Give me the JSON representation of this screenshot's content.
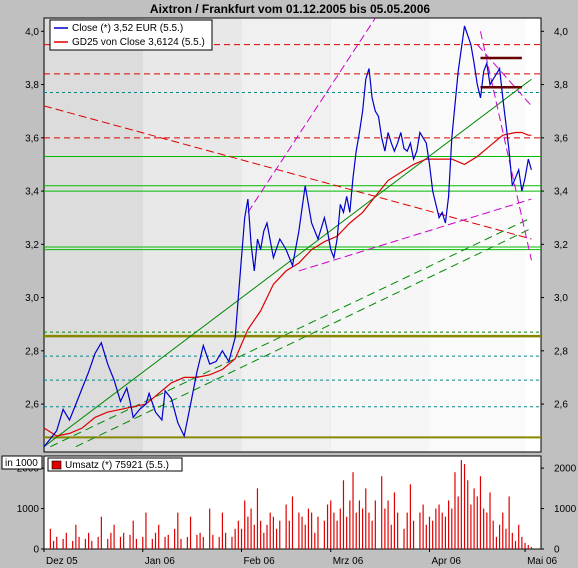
{
  "chart_data": [
    {
      "type": "line",
      "title": "Aixtron / Frankfurt vom 01.12.2005 bis 05.05.2006",
      "ylim": [
        2.42,
        4.05
      ],
      "y_ticks": [
        "4,0",
        "3,8",
        "3,6",
        "3,4",
        "3,2",
        "3,0",
        "2,8",
        "2,6"
      ],
      "y_tick_values": [
        4.0,
        3.8,
        3.6,
        3.4,
        3.2,
        3.0,
        2.8,
        2.6
      ],
      "x_ticks": [
        "Dez 05",
        "Jan 06",
        "Feb 06",
        "Mrz 06",
        "Apr 06",
        "Mai 06"
      ],
      "x_tick_days": [
        0,
        31,
        62,
        90,
        121,
        151
      ],
      "x_range_days": [
        0,
        156
      ],
      "legend": [
        {
          "label": "Close (*) 3,52 EUR (5.5.)",
          "color": "#0000cc"
        },
        {
          "label": "GD25 von Close 3,6124 (5.5.)",
          "color": "#dd0000"
        }
      ],
      "series": [
        {
          "name": "Close (*) 3,52 EUR (5.5.)",
          "color": "#0000cc",
          "x": [
            0,
            2,
            4,
            6,
            8,
            10,
            12,
            14,
            16,
            18,
            20,
            22,
            24,
            26,
            27,
            28,
            30,
            32,
            33,
            35,
            37,
            38,
            40,
            42,
            44,
            46,
            48,
            50,
            52,
            54,
            56,
            58,
            60,
            61,
            62,
            63,
            64,
            65,
            66,
            67,
            68,
            69,
            70,
            72,
            74,
            76,
            78,
            80,
            82,
            84,
            86,
            88,
            89,
            90,
            91,
            92,
            93,
            94,
            95,
            96,
            97,
            98,
            99,
            100,
            101,
            102,
            103,
            104,
            105,
            106,
            107,
            108,
            109,
            110,
            111,
            112,
            113,
            114,
            115,
            116,
            117,
            118,
            119,
            120,
            121,
            122,
            123,
            124,
            125,
            126,
            127,
            128,
            130,
            132,
            134,
            135,
            136,
            137,
            138,
            139,
            140,
            141,
            142,
            143,
            144,
            145,
            146,
            147,
            148,
            149,
            150,
            151,
            152,
            153
          ],
          "y": [
            2.44,
            2.47,
            2.5,
            2.58,
            2.54,
            2.6,
            2.66,
            2.72,
            2.79,
            2.83,
            2.75,
            2.69,
            2.61,
            2.66,
            2.61,
            2.55,
            2.58,
            2.6,
            2.64,
            2.57,
            2.54,
            2.65,
            2.62,
            2.53,
            2.48,
            2.6,
            2.72,
            2.82,
            2.75,
            2.76,
            2.8,
            2.76,
            2.85,
            3.0,
            3.15,
            3.3,
            3.37,
            3.2,
            3.1,
            3.22,
            3.18,
            3.25,
            3.28,
            3.15,
            3.22,
            3.18,
            3.12,
            3.25,
            3.42,
            3.28,
            3.22,
            3.3,
            3.25,
            3.18,
            3.15,
            3.22,
            3.35,
            3.32,
            3.38,
            3.32,
            3.45,
            3.55,
            3.62,
            3.7,
            3.82,
            3.86,
            3.75,
            3.7,
            3.68,
            3.6,
            3.55,
            3.62,
            3.58,
            3.55,
            3.58,
            3.62,
            3.56,
            3.55,
            3.58,
            3.52,
            3.55,
            3.62,
            3.6,
            3.58,
            3.5,
            3.4,
            3.35,
            3.3,
            3.32,
            3.28,
            3.38,
            3.6,
            3.85,
            4.02,
            3.95,
            3.88,
            3.8,
            3.75,
            3.85,
            3.88,
            3.8,
            3.82,
            3.84,
            3.86,
            3.75,
            3.65,
            3.55,
            3.42,
            3.45,
            3.48,
            3.4,
            3.45,
            3.52,
            3.48
          ]
        },
        {
          "name": "GD25 von Close 3,6124 (5.5.)",
          "color": "#dd0000",
          "x": [
            0,
            4,
            8,
            12,
            16,
            20,
            24,
            28,
            32,
            36,
            40,
            44,
            48,
            52,
            56,
            60,
            64,
            68,
            72,
            76,
            80,
            84,
            88,
            92,
            96,
            100,
            104,
            108,
            112,
            116,
            120,
            124,
            128,
            132,
            136,
            140,
            144,
            148,
            150,
            152,
            153
          ],
          "y": [
            2.51,
            2.48,
            2.49,
            2.51,
            2.55,
            2.57,
            2.58,
            2.59,
            2.6,
            2.64,
            2.68,
            2.7,
            2.7,
            2.71,
            2.73,
            2.77,
            2.88,
            2.95,
            3.05,
            3.1,
            3.13,
            3.18,
            3.21,
            3.23,
            3.28,
            3.32,
            3.38,
            3.44,
            3.47,
            3.5,
            3.52,
            3.52,
            3.52,
            3.5,
            3.53,
            3.57,
            3.61,
            3.62,
            3.62,
            3.61,
            3.61
          ]
        }
      ]
    },
    {
      "type": "bar",
      "legend": [
        {
          "label": "Umsatz (*) 75921 (5.5.)",
          "color": "#dd0000"
        }
      ],
      "unit_label": "in 1000",
      "ylim": [
        0,
        2300
      ],
      "y_ticks": [
        "2000",
        "1000",
        "0"
      ],
      "y_tick_values": [
        2000,
        1000,
        0
      ],
      "series": [
        {
          "name": "Umsatz (*) 75921 (5.5.)",
          "color": "#dd0000",
          "x": [
            2,
            3,
            4,
            6,
            7,
            9,
            10,
            11,
            13,
            14,
            15,
            17,
            18,
            20,
            21,
            22,
            24,
            25,
            27,
            28,
            29,
            31,
            32,
            34,
            35,
            36,
            38,
            39,
            41,
            42,
            43,
            45,
            46,
            48,
            49,
            50,
            52,
            53,
            55,
            56,
            57,
            59,
            60,
            61,
            62,
            63,
            64,
            65,
            66,
            67,
            68,
            69,
            70,
            71,
            72,
            73,
            74,
            76,
            77,
            78,
            80,
            81,
            82,
            83,
            84,
            85,
            86,
            88,
            89,
            90,
            91,
            92,
            93,
            94,
            95,
            96,
            97,
            98,
            99,
            100,
            101,
            102,
            103,
            104,
            106,
            107,
            108,
            109,
            110,
            111,
            113,
            114,
            115,
            116,
            118,
            119,
            120,
            121,
            122,
            123,
            124,
            125,
            126,
            127,
            128,
            129,
            130,
            131,
            132,
            133,
            134,
            135,
            136,
            137,
            138,
            139,
            140,
            141,
            142,
            143,
            144,
            145,
            146,
            147,
            148,
            149,
            150,
            151,
            152,
            153
          ],
          "values": [
            500,
            200,
            300,
            250,
            400,
            200,
            600,
            300,
            250,
            400,
            200,
            300,
            800,
            250,
            400,
            600,
            300,
            400,
            350,
            700,
            250,
            300,
            900,
            250,
            400,
            600,
            300,
            350,
            500,
            900,
            250,
            300,
            800,
            350,
            400,
            300,
            1000,
            350,
            300,
            900,
            400,
            300,
            500,
            700,
            500,
            1200,
            800,
            1000,
            600,
            1500,
            700,
            400,
            600,
            900,
            800,
            500,
            700,
            1100,
            700,
            1300,
            900,
            800,
            600,
            1000,
            900,
            400,
            800,
            700,
            1100,
            1200,
            900,
            700,
            1000,
            1700,
            800,
            1200,
            1900,
            900,
            1200,
            1000,
            1500,
            900,
            700,
            1200,
            1800,
            1000,
            1200,
            600,
            1400,
            900,
            500,
            900,
            1600,
            700,
            900,
            1100,
            600,
            800,
            700,
            1000,
            1100,
            900,
            800,
            1200,
            1000,
            1900,
            1300,
            2200,
            2100,
            1700,
            1100,
            1500,
            1300,
            1800,
            1000,
            900,
            1400,
            700,
            300,
            600,
            900,
            500,
            1300,
            400,
            200,
            600,
            300,
            150,
            100,
            50
          ]
        }
      ]
    }
  ]
}
